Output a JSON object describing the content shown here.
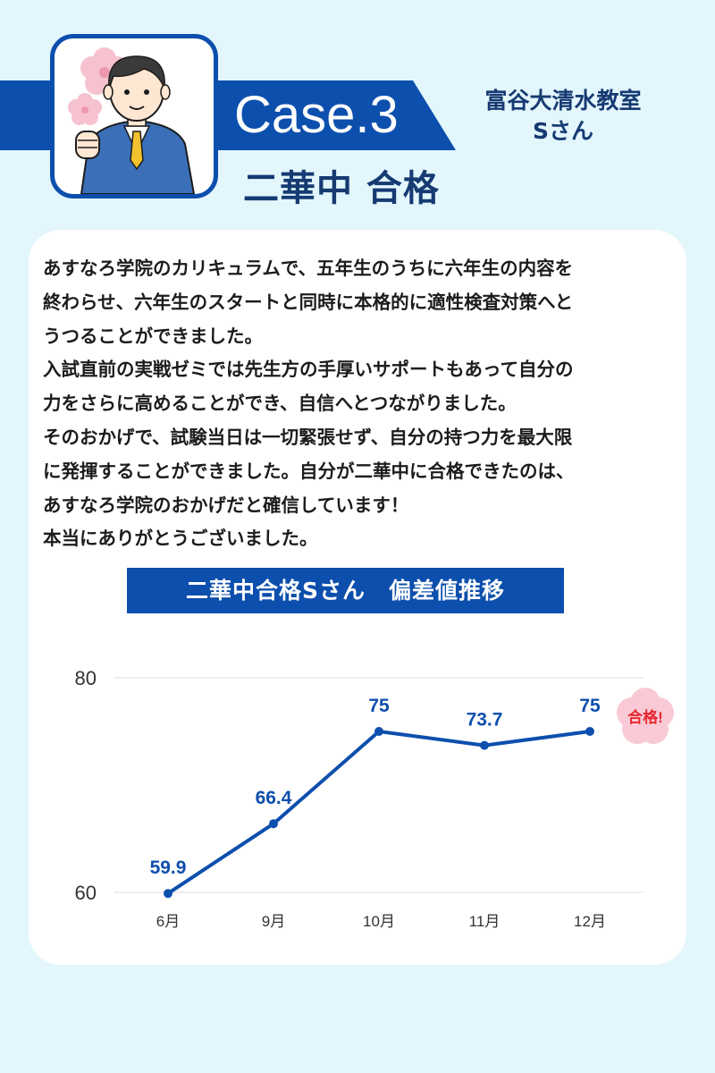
{
  "header": {
    "case_label": "Case.3",
    "result_title": "二華中 合格",
    "school_line1": "富谷大清水教室",
    "school_line2": "Sさん",
    "avatar_icon": "student-boy-thumbs-up-icon",
    "decoration_icon": "cherry-blossom-icon"
  },
  "story": {
    "paragraphs": [
      "あすなろ学院のカリキュラムで、五年生のうちに六年生の内容を\n終わらせ、六年生のスタートと同時に本格的に適性検査対策へと\nうつることができました。",
      "入試直前の実戦ゼミでは先生方の手厚いサポートもあって自分の\n力をさらに高めることができ、自信へとつながりました。",
      "そのおかげで、試験当日は一切緊張せず、自分の持つ力を最大限\nに発揮することができました。自分が二華中に合格できたのは、\nあすなろ学院のおかげだと確信しています！",
      "本当にありがとうございました。"
    ]
  },
  "chart_data": {
    "type": "line",
    "title": "二華中合格Sさん　偏差値推移",
    "categories": [
      "6月",
      "9月",
      "10月",
      "11月",
      "12月"
    ],
    "values": [
      59.9,
      66.4,
      75,
      73.7,
      75
    ],
    "data_labels": [
      "59.9",
      "66.4",
      "75",
      "73.7",
      "75"
    ],
    "ylim": [
      60,
      80
    ],
    "y_ticks": [
      "60",
      "80"
    ],
    "grid": true,
    "annotation": "合格!",
    "colors": {
      "line": "#0d4fad",
      "label": "#0d4fad",
      "grid": "#dddddd",
      "badge_fill": "#f9cad5",
      "badge_text": "#e8262f"
    }
  },
  "colors": {
    "background": "#e3f6fc",
    "accent": "#0d4fad",
    "heading": "#163a72",
    "card": "#ffffff"
  }
}
